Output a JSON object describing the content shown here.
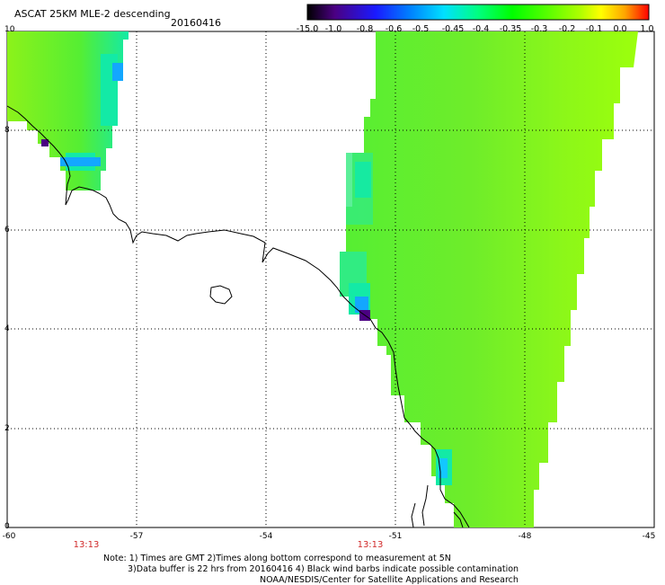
{
  "header": {
    "title": "ASCAT 25KM MLE-2 descending",
    "date": "20160416"
  },
  "colorbar": {
    "labels": [
      "-15.0",
      "-1.0",
      "-0.8",
      "-0.6",
      "-0.5",
      "-0.45",
      "-0.4",
      "-0.35",
      "-0.3",
      "-0.2",
      "-0.1",
      "0.0",
      "1.0"
    ],
    "colors": [
      "#000000",
      "#4b0082",
      "#1a1aff",
      "#0080ff",
      "#00e0ff",
      "#00ff80",
      "#00ff00",
      "#55ff00",
      "#99ff00",
      "#ffff00",
      "#ffa500",
      "#ff5a00",
      "#ff0000"
    ]
  },
  "axes": {
    "lat_labels": [
      "10",
      "8",
      "6",
      "4",
      "2",
      "0"
    ],
    "lon_labels": [
      "-60",
      "-57",
      "-54",
      "-51",
      "-48",
      "-45"
    ]
  },
  "times": [
    "13:13",
    "13:13"
  ],
  "notes": [
    "Note: 1) Times are GMT 2)Times along bottom correspond to measurement at 5N",
    "3)Data buffer is 22 hrs from 20160416 4) Black wind barbs indicate possible contamination",
    "NOAA/NESDIS/Center for Satellite Applications and Research"
  ],
  "colors": {
    "swath_main": "#6fed2a",
    "swath_yellow": "#9cff0c",
    "swath_cyan": "#13eaa6",
    "swath_blue": "#13a7ff",
    "coast": "#000000",
    "grid": "#000000"
  }
}
